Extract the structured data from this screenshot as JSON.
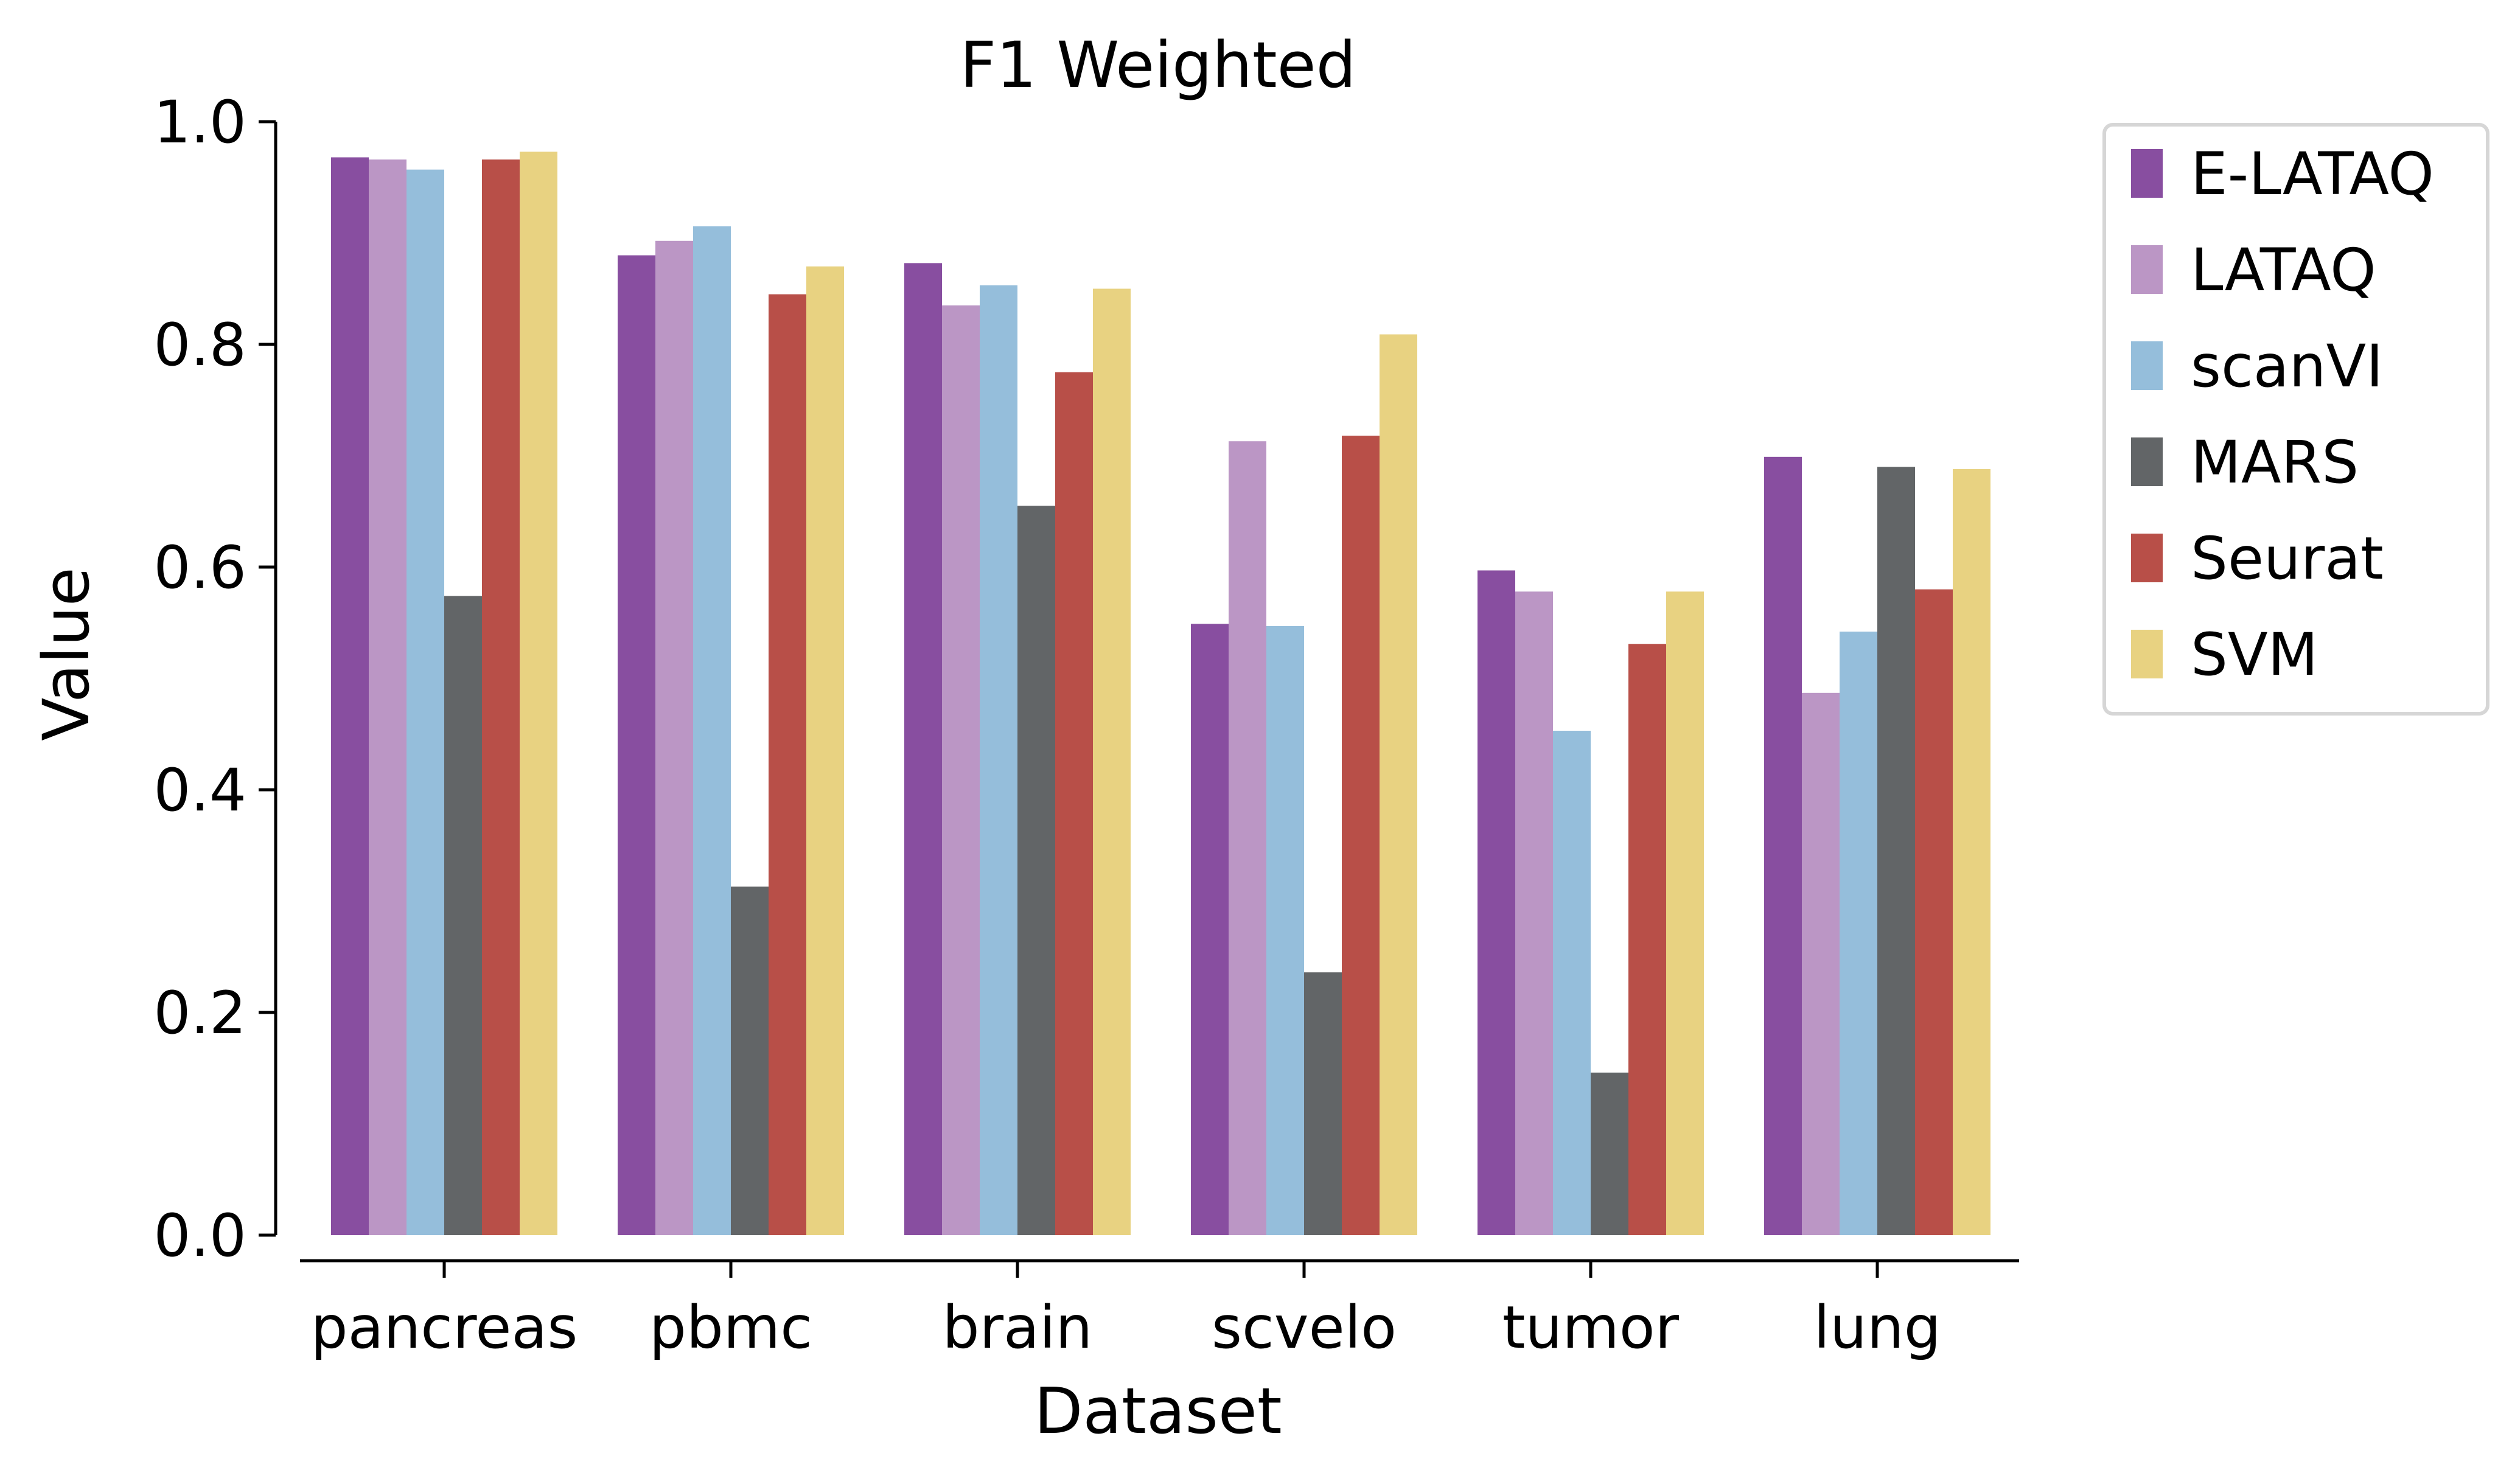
{
  "chart_data": {
    "type": "bar",
    "title": "F1 Weighted",
    "xlabel": "Dataset",
    "ylabel": "Value",
    "ylim": [
      0.0,
      1.0
    ],
    "yticks": [
      "0.0",
      "0.2",
      "0.4",
      "0.6",
      "0.8",
      "1.0"
    ],
    "categories": [
      "pancreas",
      "pbmc",
      "brain",
      "scvelo",
      "tumor",
      "lung"
    ],
    "grid": false,
    "legend_position": "outside-top-right",
    "series": [
      {
        "name": "E-LATAQ",
        "color": "#884ea0",
        "values": [
          0.968,
          0.88,
          0.873,
          0.549,
          0.597,
          0.699
        ]
      },
      {
        "name": "LATAQ",
        "color": "#bb96c5",
        "values": [
          0.966,
          0.893,
          0.835,
          0.713,
          0.578,
          0.487
        ]
      },
      {
        "name": "scanVI",
        "color": "#95bedb",
        "values": [
          0.957,
          0.906,
          0.853,
          0.547,
          0.453,
          0.542
        ]
      },
      {
        "name": "MARS",
        "color": "#626567",
        "values": [
          0.574,
          0.313,
          0.655,
          0.236,
          0.146,
          0.69
        ]
      },
      {
        "name": "Seurat",
        "color": "#b84f48",
        "values": [
          0.966,
          0.845,
          0.775,
          0.718,
          0.531,
          0.58
        ]
      },
      {
        "name": "SVM",
        "color": "#e8d281",
        "values": [
          0.973,
          0.87,
          0.85,
          0.809,
          0.578,
          0.688
        ]
      }
    ]
  }
}
